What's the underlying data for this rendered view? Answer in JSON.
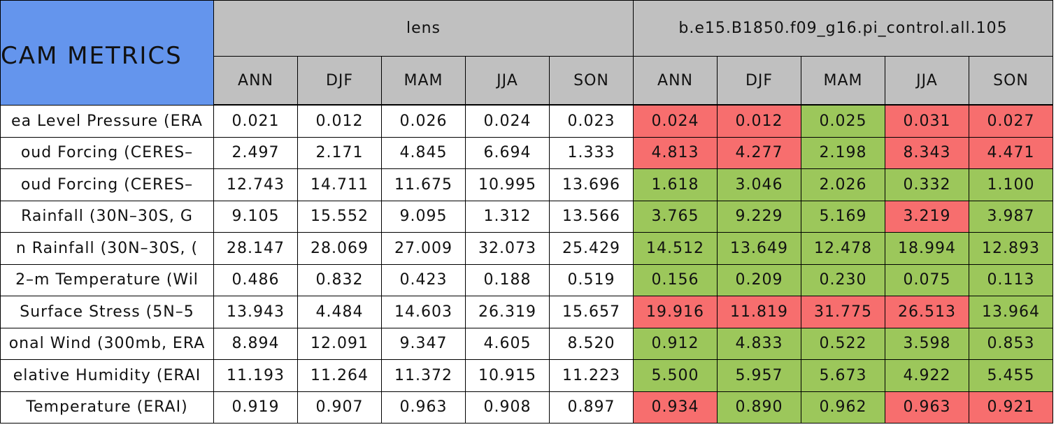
{
  "header": {
    "title": "CAM METRICS",
    "groups": [
      "lens",
      "b.e15.B1850.f09_g16.pi_control.all.105"
    ],
    "seasons": [
      "ANN",
      "DJF",
      "MAM",
      "JJA",
      "SON"
    ]
  },
  "table": {
    "row_labels": [
      "ea Level Pressure (ERA",
      "oud Forcing (CERES–",
      "oud Forcing (CERES–",
      "Rainfall (30N–30S, G",
      "n Rainfall (30N–30S, (",
      "2–m Temperature (Wil",
      "Surface Stress (5N–5",
      "onal Wind (300mb, ERA",
      "elative Humidity (ERAI",
      "Temperature (ERAI)"
    ],
    "rows": [
      [
        "0.021",
        "0.012",
        "0.026",
        "0.024",
        "0.023",
        "0.024",
        "0.012",
        "0.025",
        "0.031",
        "0.027"
      ],
      [
        "2.497",
        "2.171",
        "4.845",
        "6.694",
        "1.333",
        "4.813",
        "4.277",
        "2.198",
        "8.343",
        "4.471"
      ],
      [
        "12.743",
        "14.711",
        "11.675",
        "10.995",
        "13.696",
        "1.618",
        "3.046",
        "2.026",
        "0.332",
        "1.100"
      ],
      [
        "9.105",
        "15.552",
        "9.095",
        "1.312",
        "13.566",
        "3.765",
        "9.229",
        "5.169",
        "3.219",
        "3.987"
      ],
      [
        "28.147",
        "28.069",
        "27.009",
        "32.073",
        "25.429",
        "14.512",
        "13.649",
        "12.478",
        "18.994",
        "12.893"
      ],
      [
        "0.486",
        "0.832",
        "0.423",
        "0.188",
        "0.519",
        "0.156",
        "0.209",
        "0.230",
        "0.075",
        "0.113"
      ],
      [
        "13.943",
        "4.484",
        "14.603",
        "26.319",
        "15.657",
        "19.916",
        "11.819",
        "31.775",
        "26.513",
        "13.964"
      ],
      [
        "8.894",
        "12.091",
        "9.347",
        "4.605",
        "8.520",
        "0.912",
        "4.833",
        "0.522",
        "3.598",
        "0.853"
      ],
      [
        "11.193",
        "11.264",
        "11.372",
        "10.915",
        "11.223",
        "5.500",
        "5.957",
        "5.673",
        "4.922",
        "5.455"
      ],
      [
        "0.919",
        "0.907",
        "0.963",
        "0.908",
        "0.897",
        "0.934",
        "0.890",
        "0.962",
        "0.963",
        "0.921"
      ]
    ],
    "cell_colors": [
      [
        "#ffffff",
        "#ffffff",
        "#ffffff",
        "#ffffff",
        "#ffffff",
        "#f76e6e",
        "#f76e6e",
        "#9cc75b",
        "#f76e6e",
        "#f76e6e"
      ],
      [
        "#ffffff",
        "#ffffff",
        "#ffffff",
        "#ffffff",
        "#ffffff",
        "#f76e6e",
        "#f76e6e",
        "#9cc75b",
        "#f76e6e",
        "#f76e6e"
      ],
      [
        "#ffffff",
        "#ffffff",
        "#ffffff",
        "#ffffff",
        "#ffffff",
        "#9cc75b",
        "#9cc75b",
        "#9cc75b",
        "#9cc75b",
        "#9cc75b"
      ],
      [
        "#ffffff",
        "#ffffff",
        "#ffffff",
        "#ffffff",
        "#ffffff",
        "#9cc75b",
        "#9cc75b",
        "#9cc75b",
        "#f76e6e",
        "#9cc75b"
      ],
      [
        "#ffffff",
        "#ffffff",
        "#ffffff",
        "#ffffff",
        "#ffffff",
        "#9cc75b",
        "#9cc75b",
        "#9cc75b",
        "#9cc75b",
        "#9cc75b"
      ],
      [
        "#ffffff",
        "#ffffff",
        "#ffffff",
        "#ffffff",
        "#ffffff",
        "#9cc75b",
        "#9cc75b",
        "#9cc75b",
        "#9cc75b",
        "#9cc75b"
      ],
      [
        "#ffffff",
        "#ffffff",
        "#ffffff",
        "#ffffff",
        "#ffffff",
        "#f76e6e",
        "#f76e6e",
        "#f76e6e",
        "#f76e6e",
        "#9cc75b"
      ],
      [
        "#ffffff",
        "#ffffff",
        "#ffffff",
        "#ffffff",
        "#ffffff",
        "#9cc75b",
        "#9cc75b",
        "#9cc75b",
        "#9cc75b",
        "#9cc75b"
      ],
      [
        "#ffffff",
        "#ffffff",
        "#ffffff",
        "#ffffff",
        "#ffffff",
        "#9cc75b",
        "#9cc75b",
        "#9cc75b",
        "#9cc75b",
        "#9cc75b"
      ],
      [
        "#ffffff",
        "#ffffff",
        "#ffffff",
        "#ffffff",
        "#ffffff",
        "#f76e6e",
        "#9cc75b",
        "#9cc75b",
        "#f76e6e",
        "#f76e6e"
      ]
    ]
  }
}
